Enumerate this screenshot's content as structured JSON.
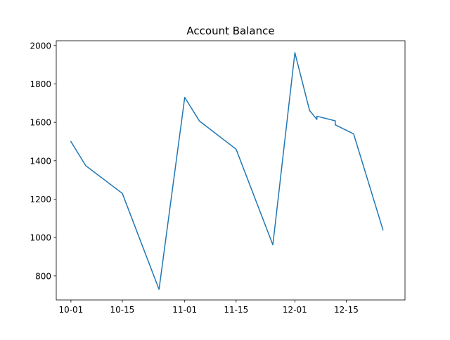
{
  "chart_data": {
    "type": "line",
    "title": "Account Balance",
    "xlabel": "",
    "ylabel": "",
    "x_tick_labels": [
      "10-01",
      "10-15",
      "11-01",
      "11-15",
      "12-01",
      "12-15"
    ],
    "y_tick_labels": [
      "800",
      "1000",
      "1200",
      "1400",
      "1600",
      "1800",
      "2000"
    ],
    "x_ticks": [
      "2023-10-01",
      "2023-10-15",
      "2023-11-01",
      "2023-11-15",
      "2023-12-01",
      "2023-12-15"
    ],
    "y_ticks": [
      800,
      1000,
      1200,
      1400,
      1600,
      1800,
      2000
    ],
    "xlim": [
      "2023-09-27",
      "2023-12-31"
    ],
    "ylim": [
      675,
      2025
    ],
    "grid": false,
    "legend": "none",
    "colors": {
      "series": "#1f77b4"
    },
    "series": [
      {
        "x": [
          "2023-10-01",
          "2023-10-05",
          "2023-10-15",
          "2023-10-25",
          "2023-11-01",
          "2023-11-05",
          "2023-11-15",
          "2023-11-25",
          "2023-12-01",
          "2023-12-05",
          "2023-12-07",
          "2023-12-07",
          "2023-12-12",
          "2023-12-12",
          "2023-12-17",
          "2023-12-25"
        ],
        "y": [
          1500,
          1375,
          1230,
          730,
          1730,
          1607,
          1460,
          962,
          1963,
          1662,
          1615,
          1632,
          1608,
          1587,
          1540,
          1040
        ]
      }
    ]
  }
}
